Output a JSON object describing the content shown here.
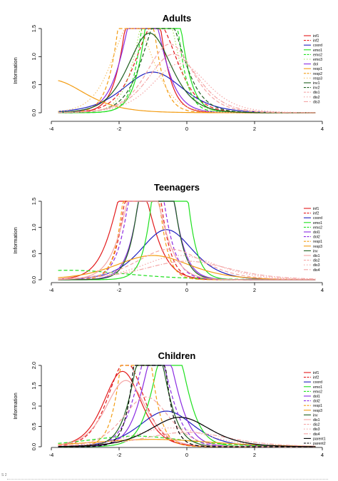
{
  "figure_label": "S 2",
  "chart_data": [
    {
      "type": "line",
      "title": "Adults",
      "xlabel": "",
      "ylabel": "Information",
      "xlim": [
        -4,
        4
      ],
      "ylim": [
        0,
        1.5
      ],
      "xticks": [
        "-4",
        "-2",
        "0",
        "2",
        "4"
      ],
      "yticks": [
        "0.0",
        "0.5",
        "1.0",
        "1.5"
      ],
      "legend": "top-right",
      "series": [
        {
          "name": "inf1",
          "color": "#e31a1c",
          "dash": "solid",
          "a": 2.2,
          "b": -1.3
        },
        {
          "name": "inf2",
          "color": "#e31a1c",
          "dash": "dashed",
          "a": 1.5,
          "b": -0.9
        },
        {
          "name": "coord",
          "color": "#1f1fbf",
          "dash": "solid",
          "a": 1.0,
          "b": -1.0
        },
        {
          "name": "emo1",
          "color": "#1ee01e",
          "dash": "solid",
          "a": 2.25,
          "b": -0.7
        },
        {
          "name": "emo2",
          "color": "#1ee01e",
          "dash": "dashed",
          "a": 2.5,
          "b": -0.8
        },
        {
          "name": "emo3",
          "color": "#a8e060",
          "dash": "dotted",
          "a": 1.9,
          "b": -0.9
        },
        {
          "name": "dol",
          "color": "#8a2be2",
          "dash": "solid",
          "a": 1.8,
          "b": -1.3
        },
        {
          "name": "resp1",
          "color": "#f39c12",
          "dash": "solid",
          "a": 0.9,
          "b": -4.0
        },
        {
          "name": "resp2",
          "color": "#f39c12",
          "dash": "dashed",
          "a": 2.3,
          "b": -1.5
        },
        {
          "name": "resp3",
          "color": "#f7c36b",
          "dash": "dotted",
          "a": 1.5,
          "b": -1.6
        },
        {
          "name": "inv1",
          "color": "#1f5f1f",
          "dash": "solid",
          "a": 1.4,
          "b": -1.1
        },
        {
          "name": "inv2",
          "color": "#1f5f1f",
          "dash": "dashed",
          "a": 1.6,
          "b": -0.7
        },
        {
          "name": "dis1",
          "color": "#f4a6a6",
          "dash": "dashed",
          "a": 1.3,
          "b": -0.5
        },
        {
          "name": "dis2",
          "color": "#f4a6a6",
          "dash": "dotted",
          "a": 1.1,
          "b": -0.2
        },
        {
          "name": "dis3",
          "color": "#f4a6a6",
          "dash": "dashdot",
          "a": 1.2,
          "b": -0.4
        }
      ]
    },
    {
      "type": "line",
      "title": "Teenagers",
      "xlabel": "",
      "ylabel": "Information",
      "xlim": [
        -4,
        4
      ],
      "ylim": [
        0,
        1.5
      ],
      "xticks": [
        "-4",
        "-2",
        "0",
        "2",
        "4"
      ],
      "yticks": [
        "0.0",
        "0.5",
        "1.0",
        "1.5"
      ],
      "legend": "top-right",
      "series": [
        {
          "name": "inf1",
          "color": "#e31a1c",
          "dash": "solid",
          "a": 1.75,
          "b": -1.6
        },
        {
          "name": "inf2",
          "color": "#e31a1c",
          "dash": "dashed",
          "a": 2.45,
          "b": -1.3
        },
        {
          "name": "coord",
          "color": "#1f1fbf",
          "dash": "solid",
          "a": 1.15,
          "b": -0.6
        },
        {
          "name": "emo1",
          "color": "#1ee01e",
          "dash": "solid",
          "a": 2.6,
          "b": -0.5
        },
        {
          "name": "emo2",
          "color": "#1ee01e",
          "dash": "dashed",
          "a": 0.5,
          "b": -3.5
        },
        {
          "name": "dol1",
          "color": "#8a2be2",
          "dash": "solid",
          "a": 2.2,
          "b": -0.9
        },
        {
          "name": "dol2",
          "color": "#8a2be2",
          "dash": "dashed",
          "a": 2.2,
          "b": -1.2
        },
        {
          "name": "resp1",
          "color": "#f39c12",
          "dash": "dashed",
          "a": 2.7,
          "b": -1.35
        },
        {
          "name": "resp3",
          "color": "#f39c12",
          "dash": "solid",
          "a": 0.8,
          "b": -1.0
        },
        {
          "name": "inv",
          "color": "#1f5f1f",
          "dash": "solid",
          "a": 2.4,
          "b": -0.9
        },
        {
          "name": "dis1",
          "color": "#f4a6a6",
          "dash": "solid",
          "a": 1.8,
          "b": -1.3
        },
        {
          "name": "dis2",
          "color": "#f4a6a6",
          "dash": "dashed",
          "a": 0.9,
          "b": -0.5
        },
        {
          "name": "dis3",
          "color": "#f4a6a6",
          "dash": "dotted",
          "a": 0.8,
          "b": -0.2
        },
        {
          "name": "dis4",
          "color": "#f4a6a6",
          "dash": "dashdot",
          "a": 0.7,
          "b": 0.0
        }
      ]
    },
    {
      "type": "line",
      "title": "Children",
      "xlabel": "",
      "ylabel": "Information",
      "xlim": [
        -4,
        4
      ],
      "ylim": [
        0,
        2.0
      ],
      "xticks": [
        "-4",
        "-2",
        "0",
        "2",
        "4"
      ],
      "yticks": [
        "0.0",
        "0.5",
        "1.0",
        "1.5",
        "2.0"
      ],
      "legend": "top-right",
      "series": [
        {
          "name": "inf1",
          "color": "#e31a1c",
          "dash": "solid",
          "a": 1.6,
          "b": -1.9
        },
        {
          "name": "inf2",
          "color": "#e31a1c",
          "dash": "dashed",
          "a": 1.7,
          "b": -1.8
        },
        {
          "name": "coord",
          "color": "#1f1fbf",
          "dash": "solid",
          "a": 1.1,
          "b": -0.6
        },
        {
          "name": "emo1",
          "color": "#1ee01e",
          "dash": "solid",
          "a": 2.0,
          "b": -0.5
        },
        {
          "name": "emo2",
          "color": "#1ee01e",
          "dash": "dashed",
          "a": 0.6,
          "b": -1.5
        },
        {
          "name": "dol1",
          "color": "#8a2be2",
          "dash": "solid",
          "a": 1.95,
          "b": -0.8
        },
        {
          "name": "dol2",
          "color": "#8a2be2",
          "dash": "dashed",
          "a": 1.9,
          "b": -1.0
        },
        {
          "name": "resp1",
          "color": "#f39c12",
          "dash": "dashed",
          "a": 2.55,
          "b": -1.5
        },
        {
          "name": "resp3",
          "color": "#f39c12",
          "dash": "solid",
          "a": 0.5,
          "b": -1.0
        },
        {
          "name": "inv",
          "color": "#1f5f1f",
          "dash": "solid",
          "a": 2.1,
          "b": -1.1
        },
        {
          "name": "dis1",
          "color": "#f4a6a6",
          "dash": "solid",
          "a": 1.5,
          "b": -1.8
        },
        {
          "name": "dis2",
          "color": "#f4a6a6",
          "dash": "dashed",
          "a": 1.3,
          "b": -1.2
        },
        {
          "name": "dis3",
          "color": "#f4a6a6",
          "dash": "dotted",
          "a": 0.8,
          "b": -0.5
        },
        {
          "name": "dis4",
          "color": "#f4a6a6",
          "dash": "dashdot",
          "a": 0.7,
          "b": 0.0
        },
        {
          "name": "parent1",
          "color": "#000000",
          "dash": "solid",
          "a": 1.0,
          "b": -0.2
        },
        {
          "name": "parent2",
          "color": "#000000",
          "dash": "dashed",
          "a": 2.8,
          "b": -1.1
        }
      ]
    }
  ]
}
